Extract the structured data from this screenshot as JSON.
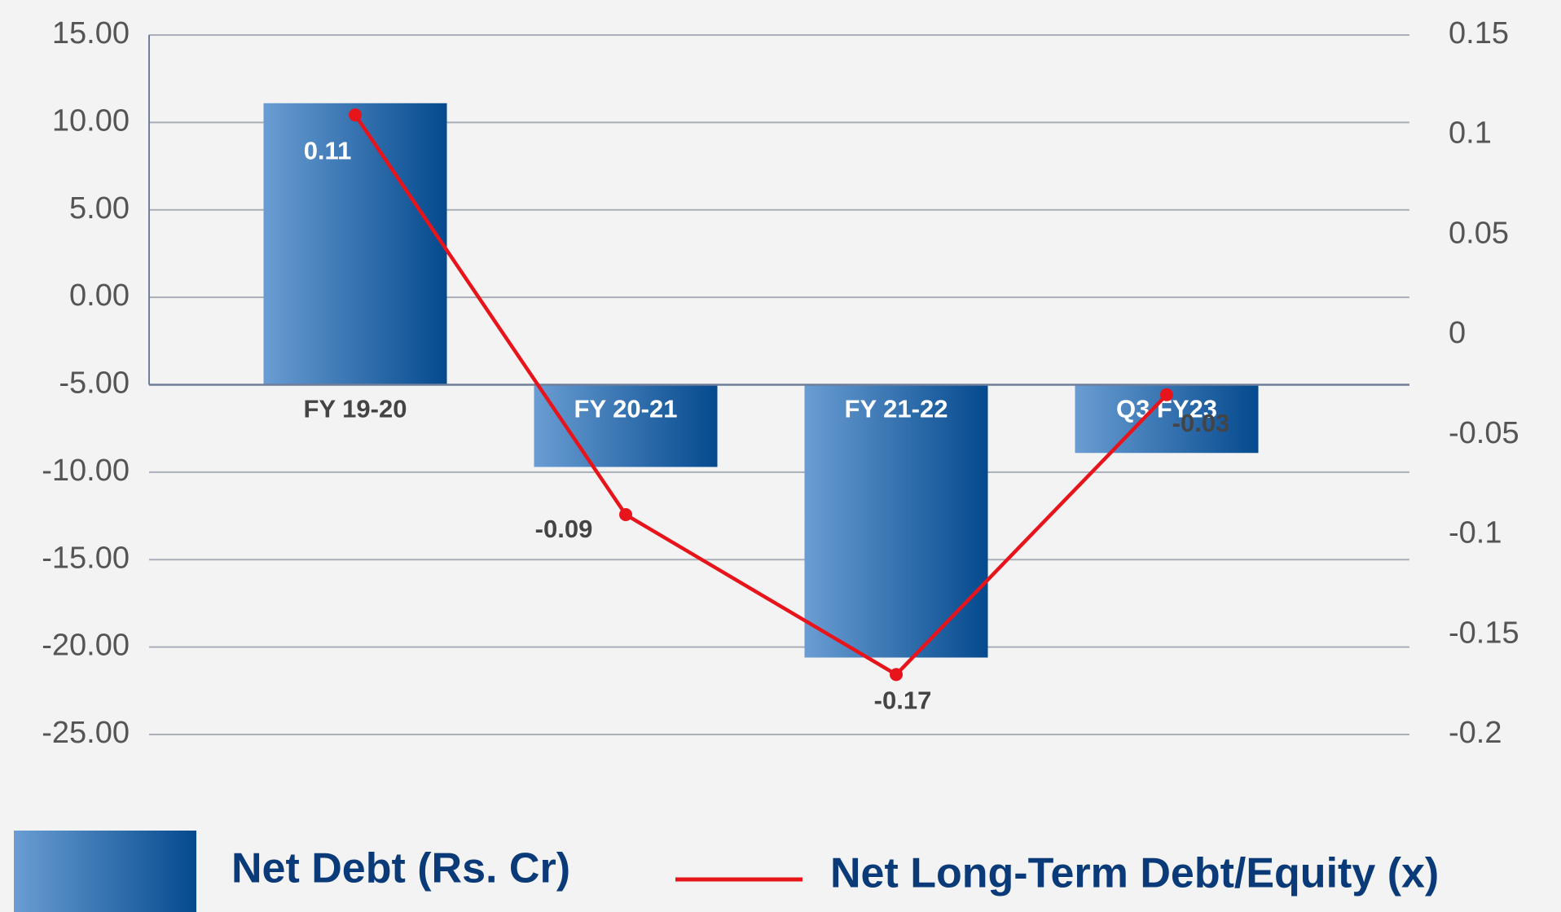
{
  "chart_data": {
    "type": "bar_line",
    "categories": [
      "FY 19-20",
      "FY 20-21",
      "FY 21-22",
      "Q3 FY23"
    ],
    "series": [
      {
        "name": "Net Debt (Rs. Cr)",
        "type": "bar",
        "color": "#1f5fa6",
        "values": [
          11.1,
          -9.7,
          -20.6,
          -8.9
        ]
      },
      {
        "name": "Net Long-Term Debt/Equity (x)",
        "type": "line",
        "axis": "y2",
        "color": "#e8141c",
        "values": [
          0.11,
          -0.09,
          -0.17,
          -0.03
        ]
      }
    ],
    "ylim": [
      -25,
      15
    ],
    "yticks": [
      {
        "value": -25,
        "label": "-25.00"
      },
      {
        "value": -20,
        "label": "-20.00"
      },
      {
        "value": -15,
        "label": "-15.00"
      },
      {
        "value": -10,
        "label": "-10.00"
      },
      {
        "value": -5,
        "label": "-5.00"
      },
      {
        "value": 0,
        "label": "0.00"
      },
      {
        "value": 5,
        "label": "5.00"
      },
      {
        "value": 10,
        "label": "10.00"
      },
      {
        "value": 15,
        "label": "15.00"
      }
    ],
    "y2lim": [
      -0.2,
      0.15
    ],
    "y2ticks": [
      -0.2,
      -0.15,
      -0.1,
      -0.05,
      0,
      0.05,
      0.1,
      0.15
    ],
    "x_axis_at": -5,
    "grid": true,
    "legend": "bottom"
  }
}
